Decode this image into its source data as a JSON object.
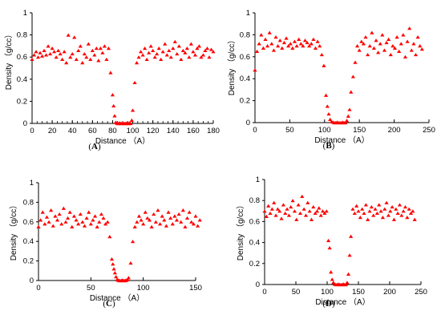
{
  "chart_data": [
    {
      "id": "A",
      "type": "scatter",
      "panel_label": "(A)",
      "panel_label_text": "A",
      "xlabel": "Distance （A）",
      "ylabel": "Density （g/cc）",
      "xlim": [
        0,
        180
      ],
      "ylim": [
        0,
        1
      ],
      "xticks": [
        0,
        20,
        40,
        60,
        80,
        100,
        120,
        140,
        160,
        180
      ],
      "yticks": [
        0,
        0.2,
        0.4,
        0.6,
        0.8,
        1
      ],
      "ytick_labels": [
        "0",
        "0.2",
        "0.4",
        "0.6",
        "0.8",
        "1"
      ],
      "marker": "triangle",
      "color": "#ff0000",
      "minor_xticks": true,
      "series": [
        {
          "x": [
            0,
            2,
            4,
            6,
            8,
            10,
            12,
            14,
            16,
            18,
            20,
            22,
            24,
            26,
            28,
            30,
            32,
            34,
            36,
            38,
            40,
            42,
            44,
            46,
            48,
            50,
            52,
            54,
            56,
            58,
            60,
            62,
            64,
            66,
            68,
            70,
            72,
            74,
            76,
            78,
            80,
            81,
            82,
            83,
            84,
            85,
            86,
            87,
            88,
            89,
            90,
            91,
            92,
            93,
            94,
            95,
            96,
            97,
            98,
            99,
            100,
            102,
            104,
            106,
            108,
            110,
            112,
            114,
            116,
            118,
            120,
            122,
            124,
            126,
            128,
            130,
            132,
            134,
            136,
            138,
            140,
            142,
            144,
            146,
            148,
            150,
            152,
            154,
            156,
            158,
            160,
            162,
            164,
            166,
            168,
            170,
            172,
            174,
            176,
            178,
            180
          ],
          "y": [
            0.58,
            0.62,
            0.65,
            0.6,
            0.64,
            0.61,
            0.66,
            0.62,
            0.7,
            0.63,
            0.68,
            0.65,
            0.6,
            0.66,
            0.63,
            0.58,
            0.65,
            0.55,
            0.8,
            0.6,
            0.63,
            0.78,
            0.58,
            0.66,
            0.7,
            0.55,
            0.63,
            0.6,
            0.72,
            0.58,
            0.66,
            0.62,
            0.68,
            0.57,
            0.68,
            0.64,
            0.7,
            0.58,
            0.68,
            0.46,
            0.26,
            0.16,
            0.07,
            0.01,
            0.005,
            0.0,
            0.0,
            0.005,
            0.0,
            0.0,
            0.005,
            0.0,
            0.0,
            0.0,
            0.005,
            0.0,
            0.0,
            0.005,
            0.0,
            0.03,
            0.12,
            0.37,
            0.55,
            0.6,
            0.65,
            0.62,
            0.68,
            0.58,
            0.64,
            0.7,
            0.66,
            0.6,
            0.63,
            0.68,
            0.58,
            0.65,
            0.72,
            0.62,
            0.66,
            0.6,
            0.68,
            0.74,
            0.63,
            0.7,
            0.58,
            0.66,
            0.64,
            0.68,
            0.6,
            0.72,
            0.65,
            0.62,
            0.68,
            0.7,
            0.6,
            0.62,
            0.66,
            0.68,
            0.6,
            0.67,
            0.65
          ]
        }
      ]
    },
    {
      "id": "B",
      "type": "scatter",
      "panel_label": "(B)",
      "panel_label_text": "B",
      "xlabel": "Distance （A）",
      "ylabel": "Density （g/cc）",
      "xlim": [
        0,
        250
      ],
      "ylim": [
        0,
        1
      ],
      "xticks": [
        0,
        50,
        100,
        150,
        200,
        250
      ],
      "yticks": [
        0,
        0.2,
        0.4,
        0.6,
        0.8,
        1
      ],
      "ytick_labels": [
        "0",
        "0.2",
        "0.4",
        "0.6",
        "0.8",
        "1"
      ],
      "marker": "triangle",
      "color": "#ff0000",
      "minor_xticks": false,
      "series": [
        {
          "x": [
            0,
            3,
            6,
            9,
            12,
            15,
            18,
            21,
            24,
            27,
            30,
            33,
            36,
            39,
            42,
            45,
            48,
            51,
            54,
            57,
            60,
            63,
            66,
            69,
            72,
            75,
            78,
            81,
            84,
            87,
            90,
            93,
            96,
            99,
            102,
            104,
            106,
            108,
            110,
            112,
            114,
            116,
            118,
            120,
            122,
            124,
            126,
            128,
            130,
            132,
            134,
            136,
            138,
            141,
            144,
            147,
            150,
            153,
            156,
            159,
            162,
            165,
            168,
            171,
            174,
            177,
            180,
            183,
            186,
            189,
            192,
            195,
            198,
            201,
            204,
            207,
            210,
            213,
            216,
            219,
            222,
            225,
            228,
            231,
            234,
            237,
            240
          ],
          "y": [
            0.48,
            0.65,
            0.72,
            0.8,
            0.68,
            0.76,
            0.7,
            0.82,
            0.72,
            0.66,
            0.78,
            0.7,
            0.75,
            0.68,
            0.73,
            0.77,
            0.7,
            0.72,
            0.68,
            0.74,
            0.7,
            0.76,
            0.72,
            0.7,
            0.75,
            0.73,
            0.7,
            0.72,
            0.76,
            0.68,
            0.74,
            0.7,
            0.62,
            0.52,
            0.25,
            0.15,
            0.08,
            0.03,
            0.01,
            0.005,
            0.0,
            0.0,
            0.005,
            0.0,
            0.0,
            0.0,
            0.005,
            0.0,
            0.0,
            0.02,
            0.06,
            0.12,
            0.28,
            0.42,
            0.55,
            0.7,
            0.66,
            0.74,
            0.72,
            0.78,
            0.62,
            0.7,
            0.82,
            0.68,
            0.75,
            0.64,
            0.72,
            0.8,
            0.66,
            0.73,
            0.76,
            0.62,
            0.7,
            0.68,
            0.78,
            0.65,
            0.72,
            0.8,
            0.6,
            0.74,
            0.86,
            0.66,
            0.72,
            0.62,
            0.78,
            0.7,
            0.67
          ]
        }
      ]
    },
    {
      "id": "C",
      "type": "scatter",
      "panel_label": "(C)",
      "panel_label_text": "C",
      "xlabel": "Distance （A）",
      "ylabel": "Density （g/cc）",
      "xlim": [
        0,
        150
      ],
      "ylim": [
        0,
        1
      ],
      "xticks": [
        0,
        50,
        100,
        150
      ],
      "yticks": [
        0,
        0.2,
        0.4,
        0.6,
        0.8,
        1
      ],
      "ytick_labels": [
        "0",
        "0.2",
        "0.4",
        "0.6",
        "0.8",
        "1"
      ],
      "marker": "triangle",
      "color": "#ff0000",
      "minor_xticks": false,
      "series": [
        {
          "x": [
            0,
            2,
            4,
            6,
            8,
            10,
            12,
            14,
            16,
            18,
            20,
            22,
            24,
            26,
            28,
            30,
            32,
            34,
            36,
            38,
            40,
            42,
            44,
            46,
            48,
            50,
            52,
            54,
            56,
            58,
            60,
            62,
            64,
            66,
            68,
            70,
            71,
            72,
            73,
            74,
            75,
            76,
            77,
            78,
            79,
            80,
            81,
            82,
            83,
            84,
            85,
            86,
            88,
            90,
            92,
            94,
            96,
            98,
            100,
            102,
            104,
            106,
            108,
            110,
            112,
            114,
            116,
            118,
            120,
            122,
            124,
            126,
            128,
            130,
            132,
            134,
            136,
            138,
            140,
            142,
            144,
            146,
            148,
            150,
            152,
            154
          ],
          "y": [
            0.55,
            0.62,
            0.7,
            0.58,
            0.65,
            0.6,
            0.72,
            0.56,
            0.66,
            0.62,
            0.68,
            0.58,
            0.74,
            0.6,
            0.64,
            0.7,
            0.55,
            0.66,
            0.62,
            0.58,
            0.68,
            0.6,
            0.56,
            0.64,
            0.7,
            0.58,
            0.62,
            0.66,
            0.55,
            0.6,
            0.68,
            0.64,
            0.58,
            0.6,
            0.45,
            0.22,
            0.17,
            0.12,
            0.08,
            0.04,
            0.01,
            0.005,
            0.0,
            0.0,
            0.0,
            0.005,
            0.0,
            0.0,
            0.0,
            0.005,
            0.01,
            0.03,
            0.18,
            0.4,
            0.55,
            0.6,
            0.66,
            0.62,
            0.58,
            0.7,
            0.64,
            0.62,
            0.55,
            0.68,
            0.6,
            0.72,
            0.58,
            0.66,
            0.62,
            0.56,
            0.7,
            0.64,
            0.58,
            0.66,
            0.62,
            0.68,
            0.6,
            0.72,
            0.55,
            0.64,
            0.7,
            0.6,
            0.58,
            0.66,
            0.56,
            0.62
          ]
        }
      ]
    },
    {
      "id": "D",
      "type": "scatter",
      "panel_label": "(D)",
      "panel_label_text": "D",
      "xlabel": "Distance （A）",
      "ylabel": "Density （g/cc）",
      "xlim": [
        0,
        250
      ],
      "ylim": [
        0,
        1
      ],
      "xticks": [
        0,
        50,
        100,
        150,
        200,
        250
      ],
      "yticks": [
        0,
        0.2,
        0.4,
        0.6,
        0.8,
        1
      ],
      "ytick_labels": [
        "0",
        "0.2",
        "0.4",
        "0.6",
        "0.8",
        "1"
      ],
      "marker": "triangle",
      "color": "#ff0000",
      "minor_xticks": false,
      "series": [
        {
          "x": [
            0,
            3,
            6,
            9,
            12,
            15,
            18,
            21,
            24,
            27,
            30,
            33,
            36,
            39,
            42,
            45,
            48,
            51,
            54,
            57,
            60,
            63,
            66,
            69,
            72,
            75,
            78,
            81,
            84,
            87,
            90,
            93,
            96,
            99,
            102,
            104,
            106,
            108,
            110,
            112,
            114,
            116,
            118,
            120,
            122,
            124,
            126,
            128,
            130,
            132,
            134,
            136,
            138,
            141,
            144,
            147,
            150,
            153,
            156,
            159,
            162,
            165,
            168,
            171,
            174,
            177,
            180,
            183,
            186,
            189,
            192,
            195,
            198,
            201,
            204,
            207,
            210,
            213,
            216,
            219,
            222,
            225,
            228,
            231,
            234,
            237,
            240
          ],
          "y": [
            0.7,
            0.65,
            0.75,
            0.68,
            0.72,
            0.78,
            0.66,
            0.72,
            0.7,
            0.63,
            0.76,
            0.68,
            0.72,
            0.66,
            0.74,
            0.8,
            0.7,
            0.62,
            0.76,
            0.68,
            0.84,
            0.72,
            0.66,
            0.78,
            0.7,
            0.62,
            0.74,
            0.68,
            0.7,
            0.73,
            0.66,
            0.7,
            0.68,
            0.7,
            0.42,
            0.35,
            0.12,
            0.05,
            0.02,
            0.005,
            0.0,
            0.0,
            0.005,
            0.0,
            0.0,
            0.0,
            0.005,
            0.0,
            0.0,
            0.02,
            0.1,
            0.28,
            0.46,
            0.72,
            0.68,
            0.75,
            0.7,
            0.64,
            0.72,
            0.68,
            0.76,
            0.62,
            0.7,
            0.74,
            0.66,
            0.72,
            0.68,
            0.76,
            0.7,
            0.64,
            0.72,
            0.78,
            0.66,
            0.7,
            0.74,
            0.62,
            0.72,
            0.68,
            0.76,
            0.66,
            0.7,
            0.74,
            0.64,
            0.72,
            0.68,
            0.7,
            0.62
          ]
        }
      ]
    }
  ]
}
